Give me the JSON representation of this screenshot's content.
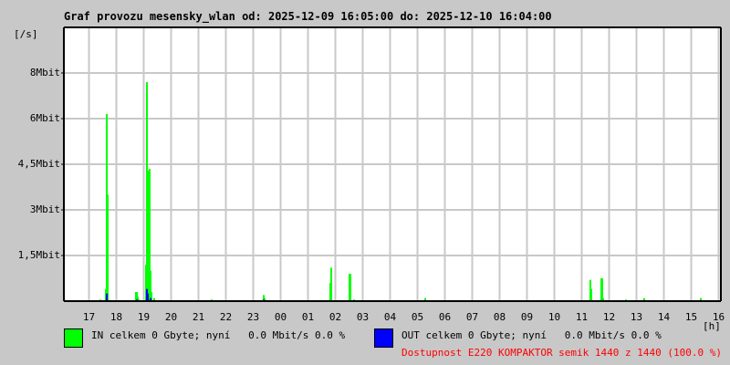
{
  "chart_data": {
    "type": "bar",
    "title": "Graf provozu mesensky_wlan od: 2025-12-09 16:05:00 do: 2025-12-10 16:04:00",
    "ylabel": "[/s]",
    "xlabel": "[h]",
    "x_start": "16:05",
    "x_hours": 24,
    "ylim_mbit": [
      0,
      9
    ],
    "y_ticks": [
      {
        "value": 1.5,
        "label": "1,5Mbit"
      },
      {
        "value": 3,
        "label": "3Mbit"
      },
      {
        "value": 4.5,
        "label": "4,5Mbit"
      },
      {
        "value": 6,
        "label": "6Mbit"
      },
      {
        "value": 7.5,
        "label": "8Mbit"
      }
    ],
    "x_ticks": [
      "17",
      "18",
      "19",
      "20",
      "21",
      "22",
      "23",
      "00",
      "01",
      "02",
      "03",
      "04",
      "05",
      "06",
      "07",
      "08",
      "09",
      "10",
      "11",
      "12",
      "13",
      "14",
      "15",
      "16"
    ],
    "grid": true,
    "series": [
      {
        "name": "IN",
        "color": "#00ff00",
        "points": [
          [
            "17:25",
            0.05
          ],
          [
            "17:37",
            0.4
          ],
          [
            "17:39",
            6.15
          ],
          [
            "17:41",
            3.5
          ],
          [
            "18:43",
            0.3
          ],
          [
            "18:45",
            0.3
          ],
          [
            "18:47",
            0.15
          ],
          [
            "18:49",
            0.05
          ],
          [
            "19:05",
            1.2
          ],
          [
            "19:07",
            7.2
          ],
          [
            "19:09",
            3.8
          ],
          [
            "19:11",
            4.3
          ],
          [
            "19:13",
            4.35
          ],
          [
            "19:15",
            1.0
          ],
          [
            "19:17",
            0.3
          ],
          [
            "19:23",
            0.1
          ],
          [
            "21:29",
            0.05
          ],
          [
            "23:23",
            0.2
          ],
          [
            "23:25",
            0.1
          ],
          [
            "01:49",
            0.6
          ],
          [
            "01:51",
            1.1
          ],
          [
            "02:31",
            0.9
          ],
          [
            "02:33",
            0.9
          ],
          [
            "02:41",
            0.05
          ],
          [
            "05:17",
            0.1
          ],
          [
            "11:19",
            0.7
          ],
          [
            "11:21",
            0.4
          ],
          [
            "11:43",
            0.75
          ],
          [
            "11:45",
            0.75
          ],
          [
            "11:47",
            0.1
          ],
          [
            "12:37",
            0.05
          ],
          [
            "13:17",
            0.1
          ],
          [
            "15:21",
            0.1
          ]
        ]
      },
      {
        "name": "OUT",
        "color": "#0000ff",
        "points": [
          [
            "17:39",
            0.25
          ],
          [
            "18:45",
            0.05
          ],
          [
            "19:07",
            0.4
          ],
          [
            "19:09",
            0.25
          ],
          [
            "19:15",
            0.1
          ],
          [
            "23:23",
            0.05
          ],
          [
            "02:31",
            0.03
          ],
          [
            "13:17",
            0.03
          ]
        ]
      }
    ]
  },
  "legend": {
    "in_text": "IN celkem 0 Gbyte; nyní   0.0 Mbit/s 0.0 %",
    "out_text": "OUT celkem 0 Gbyte; nyní   0.0 Mbit/s 0.0 %",
    "in_color": "#00ff00",
    "out_color": "#0000ff"
  },
  "availability": "Dostupnost E220 KOMPAKTOR semik 1440 z 1440 (100.0 %)"
}
